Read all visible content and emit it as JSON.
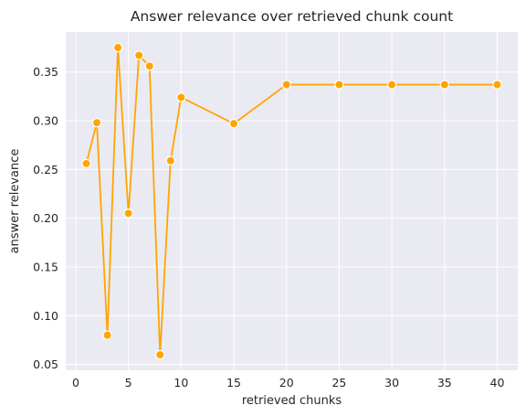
{
  "chart_data": {
    "type": "line",
    "title": "Answer relevance over retrieved chunk count",
    "xlabel": "retrieved chunks",
    "ylabel": "answer relevance",
    "x": [
      1,
      2,
      3,
      4,
      5,
      6,
      7,
      8,
      9,
      10,
      15,
      20,
      25,
      30,
      35,
      40
    ],
    "series": [
      {
        "values": [
          0.256,
          0.298,
          0.08,
          0.375,
          0.205,
          0.367,
          0.356,
          0.06,
          0.259,
          0.324,
          0.297,
          0.337,
          0.337,
          0.337,
          0.337,
          0.337
        ],
        "color": "#ffa500"
      }
    ],
    "xlim": [
      -0.95,
      41.95
    ],
    "ylim": [
      0.044,
      0.391
    ],
    "xticks": [
      0,
      5,
      10,
      15,
      20,
      25,
      30,
      35,
      40
    ],
    "yticks": [
      0.05,
      0.1,
      0.15,
      0.2,
      0.25,
      0.3,
      0.35
    ],
    "ytick_labels": [
      "0.05",
      "0.10",
      "0.15",
      "0.20",
      "0.25",
      "0.30",
      "0.35"
    ],
    "grid": true
  }
}
